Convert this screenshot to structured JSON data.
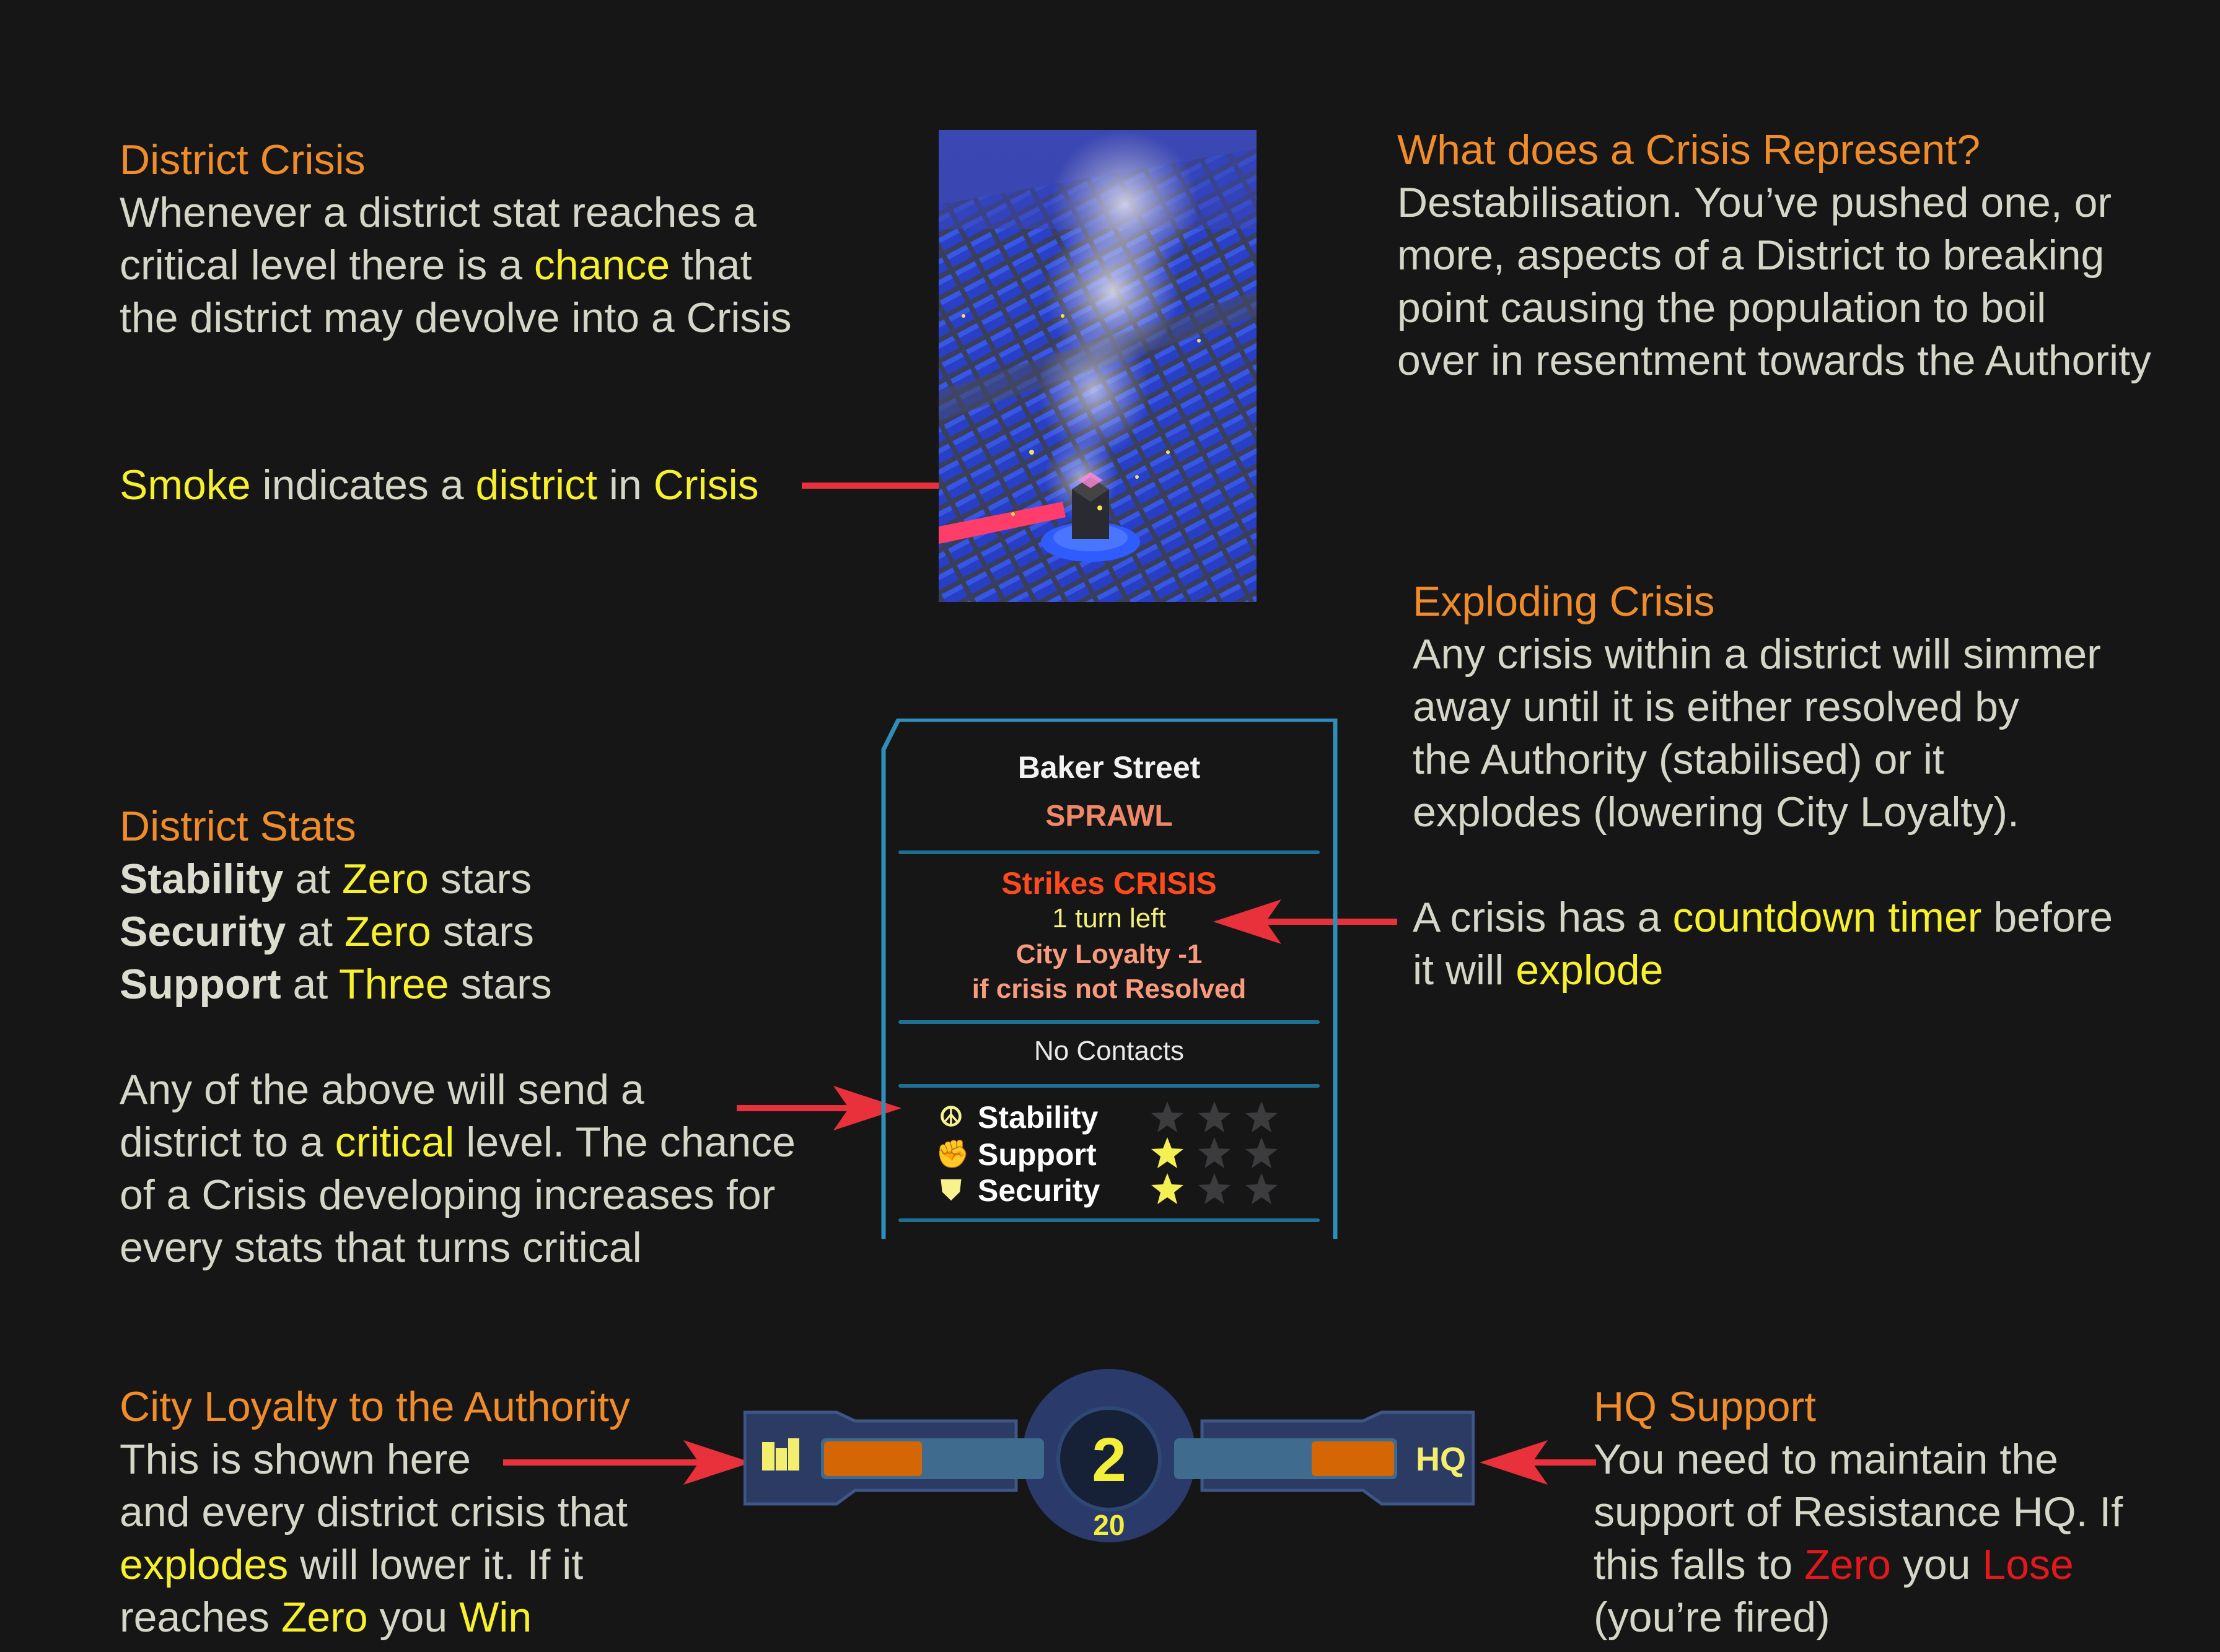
{
  "district_crisis": {
    "heading": "District Crisis",
    "l1": "Whenever a district stat reaches a",
    "l2_a": "critical level there is a ",
    "l2_chance": "chance",
    "l2_b": " that",
    "l3": "the district may devolve into a Crisis"
  },
  "smoke": {
    "smoke": "Smoke",
    "indicates": " indicates a ",
    "district": "district",
    "in": " in ",
    "crisis": "Crisis"
  },
  "represent": {
    "heading": "What does a Crisis Represent?",
    "l1": "Destabilisation. You’ve pushed one, or",
    "l2": "more, aspects of a District to breaking",
    "l3": "point causing the population to boil",
    "l4": "over in resentment towards the Authority"
  },
  "exploding": {
    "heading": "Exploding Crisis",
    "l1": "Any crisis within a district will simmer",
    "l2": "away until it is either resolved by",
    "l3": "the Authority (stabilised) or it",
    "l4": "explodes (lowering City Loyalty).",
    "t1_a": "A crisis has a ",
    "t1_timer": "countdown timer",
    "t1_b": " before",
    "t2_a": "it will ",
    "t2_explode": "explode"
  },
  "stats": {
    "heading": "District Stats",
    "r1_name": "Stability",
    "r1_at": " at ",
    "r1_val": "Zero",
    "r1_stars": " stars",
    "r2_name": "Security",
    "r2_at": " at ",
    "r2_val": "Zero",
    "r2_stars": " stars",
    "r3_name": "Support",
    "r3_at": " at ",
    "r3_val": "Three",
    "r3_stars": " stars",
    "p1": "Any of the above will send a",
    "p2_a": "district to a ",
    "p2_critical": "critical",
    "p2_b": " level. The chance",
    "p3": "of a Crisis developing increases for",
    "p4": "every stats that turns critical"
  },
  "panel": {
    "name": "Baker Street",
    "type": "SPRAWL",
    "crisis": "Strikes CRISIS",
    "turns": "1 turn left",
    "loyalty": "City Loyalty -1",
    "condition": "if crisis not Resolved",
    "contacts": "No Contacts",
    "stats": [
      {
        "label": "Stability",
        "icon": "peace-icon",
        "stars_filled": 0,
        "stars_total": 3
      },
      {
        "label": "Support",
        "icon": "fist-icon",
        "stars_filled": 1,
        "stars_total": 3
      },
      {
        "label": "Security",
        "icon": "shield-icon",
        "stars_filled": 1,
        "stars_total": 3
      }
    ]
  },
  "loyalty": {
    "heading": "City Loyalty to the Authority",
    "l1": "This is shown here",
    "l2": "and every district crisis that",
    "l3_explodes": "explodes",
    "l3_b": " will lower it. If it",
    "l4_a": "reaches ",
    "l4_zero": "Zero",
    "l4_you": " you ",
    "l4_win": "Win"
  },
  "hq": {
    "heading": "HQ Support",
    "l1": "You need to maintain the",
    "l2": "support of Resistance HQ. If",
    "l3_a": "this falls to ",
    "l3_zero": "Zero",
    "l3_you": " you ",
    "l3_lose": "Lose",
    "l4": "(you’re fired)"
  },
  "bar": {
    "turn": "2",
    "max": "20",
    "hq_label": "HQ",
    "city_fill": 0.45,
    "hq_fill": 0.38
  },
  "colors": {
    "background": "#161617",
    "heading": "#f08c2a",
    "highlight": "#f7f02d",
    "danger": "#e2181c",
    "arrow": "#e8313a",
    "text": "#d6d6c8"
  }
}
